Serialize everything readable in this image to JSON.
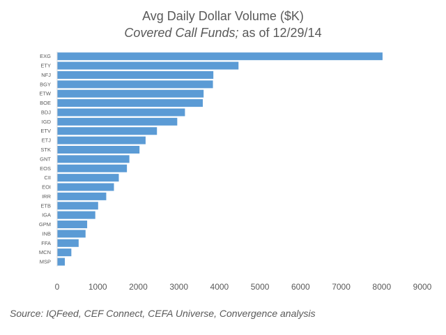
{
  "chart_data": {
    "type": "bar",
    "orientation": "horizontal",
    "title": "Avg Daily Dollar Volume ($K)",
    "subtitle_italic": "Covered Call Funds;",
    "subtitle_rest": " as of 12/29/14",
    "categories": [
      "EXG",
      "ETY",
      "NFJ",
      "BGY",
      "ETW",
      "BOE",
      "BDJ",
      "IGD",
      "ETV",
      "ETJ",
      "STK",
      "GNT",
      "EOS",
      "CII",
      "EOI",
      "IRR",
      "ETB",
      "IGA",
      "GPM",
      "INB",
      "FFA",
      "MCN",
      "MSP"
    ],
    "values": [
      8020,
      4470,
      3850,
      3840,
      3610,
      3590,
      3150,
      2960,
      2460,
      2180,
      2030,
      1780,
      1720,
      1520,
      1400,
      1210,
      1010,
      940,
      740,
      700,
      530,
      350,
      190
    ],
    "xlim": [
      0,
      9000
    ],
    "xticks": [
      0,
      1000,
      2000,
      3000,
      4000,
      5000,
      6000,
      7000,
      8000,
      9000
    ],
    "bar_color": "#5B9BD5",
    "grid": false,
    "legend": "none"
  },
  "source_text": "Source:  IQFeed, CEF Connect, CEFA Universe, Convergence analysis"
}
